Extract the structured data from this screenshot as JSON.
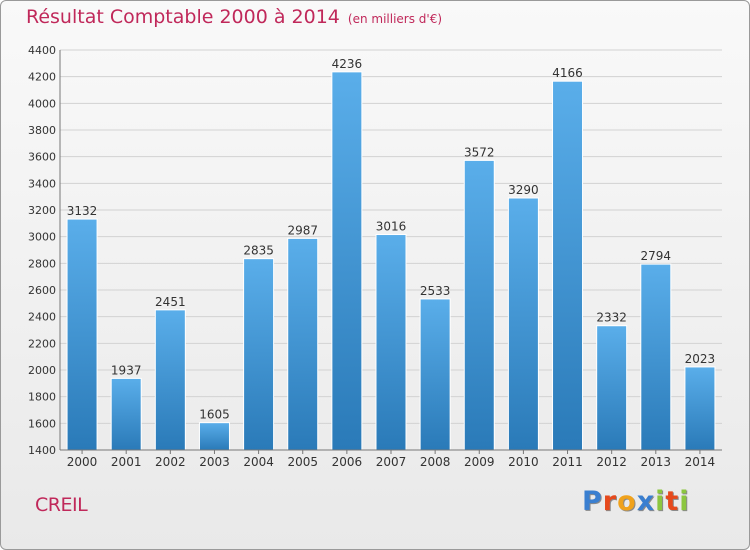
{
  "title": "Résultat Comptable 2000 à 2014",
  "subtitle": "(en milliers d'€)",
  "commune": "CREIL",
  "brand": {
    "letters": [
      {
        "char": "P",
        "color": "#3a7fd0"
      },
      {
        "char": "r",
        "color": "#e6491c"
      },
      {
        "char": "o",
        "color": "#f0a21c"
      },
      {
        "char": "x",
        "color": "#3a7fd0"
      },
      {
        "char": "i",
        "color": "#8cc63f"
      },
      {
        "char": "t",
        "color": "#e6491c"
      },
      {
        "char": "i",
        "color": "#8cc63f"
      }
    ]
  },
  "colors": {
    "title": "#c0285a",
    "bar_top": "#5aaeea",
    "bar_bottom": "#2a7ab8",
    "grid": "#d2d2d2"
  },
  "chart_data": {
    "type": "bar",
    "title": "Résultat Comptable 2000 à 2014",
    "ylabel": "en milliers d'€",
    "xlabel": "",
    "categories": [
      "2000",
      "2001",
      "2002",
      "2003",
      "2004",
      "2005",
      "2006",
      "2007",
      "2008",
      "2009",
      "2010",
      "2011",
      "2012",
      "2013",
      "2014"
    ],
    "values": [
      3132,
      1937,
      2451,
      1605,
      2835,
      2987,
      4236,
      3016,
      2533,
      3572,
      3290,
      4166,
      2332,
      2794,
      2023
    ],
    "ylim": [
      1400,
      4400
    ],
    "yticks": [
      1400,
      1600,
      1800,
      2000,
      2200,
      2400,
      2600,
      2800,
      3000,
      3200,
      3400,
      3600,
      3800,
      4000,
      4200,
      4400
    ],
    "grid": true
  }
}
